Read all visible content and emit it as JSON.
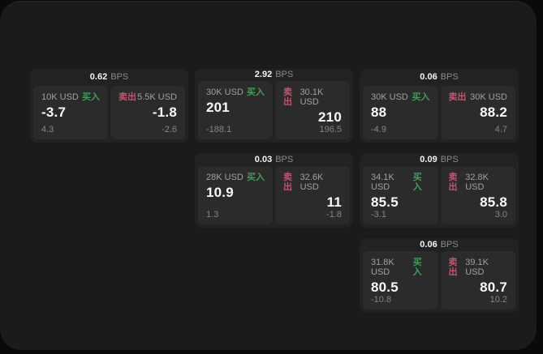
{
  "labels": {
    "bps": "BPS",
    "buy": "买入",
    "sell": "卖出"
  },
  "colors": {
    "buy": "#3f9e58",
    "sell": "#c05570",
    "window_bg": "#1b1b1b",
    "card_bg": "#222222",
    "panel_bg": "#2b2b2b",
    "outer_bg": "#0a0a0a"
  },
  "cards": [
    {
      "bps": "0.62",
      "buy": {
        "size": "10K USD",
        "value": "-3.7",
        "sub": "4.3"
      },
      "sell": {
        "size": "5.5K USD",
        "value": "-1.8",
        "sub": "-2.6"
      }
    },
    {
      "bps": "2.92",
      "buy": {
        "size": "30K USD",
        "value": "201",
        "sub": "-188.1"
      },
      "sell": {
        "size": "30.1K USD",
        "value": "210",
        "sub": "196.5"
      }
    },
    {
      "bps": "0.06",
      "buy": {
        "size": "30K USD",
        "value": "88",
        "sub": "-4.9"
      },
      "sell": {
        "size": "30K USD",
        "value": "88.2",
        "sub": "4.7"
      }
    },
    {
      "bps": "0.03",
      "buy": {
        "size": "28K USD",
        "value": "10.9",
        "sub": "1.3"
      },
      "sell": {
        "size": "32.6K USD",
        "value": "11",
        "sub": "-1.8"
      }
    },
    {
      "bps": "0.09",
      "buy": {
        "size": "34.1K USD",
        "value": "85.5",
        "sub": "-3.1"
      },
      "sell": {
        "size": "32.8K USD",
        "value": "85.8",
        "sub": "3.0"
      }
    },
    {
      "bps": "0.06",
      "buy": {
        "size": "31.8K USD",
        "value": "80.5",
        "sub": "-10.8"
      },
      "sell": {
        "size": "39.1K USD",
        "value": "80.7",
        "sub": "10.2"
      }
    }
  ]
}
